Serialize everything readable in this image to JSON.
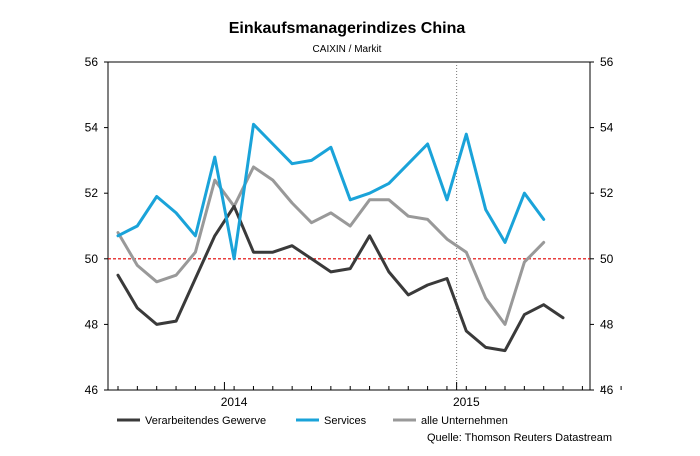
{
  "chart_data": {
    "type": "line",
    "title": "Einkaufsmanagerindizes China",
    "subtitle": "CAIXIN / Markit",
    "xlabel": "",
    "ylabel": "",
    "ylim": [
      46,
      56
    ],
    "yticks": [
      46,
      48,
      50,
      52,
      54,
      56
    ],
    "x": [
      "2013-07",
      "2013-08",
      "2013-09",
      "2013-10",
      "2013-11",
      "2013-12",
      "2014-01",
      "2014-02",
      "2014-03",
      "2014-04",
      "2014-05",
      "2014-06",
      "2014-07",
      "2014-08",
      "2014-09",
      "2014-10",
      "2014-11",
      "2014-12",
      "2015-01",
      "2015-02",
      "2015-03",
      "2015-04",
      "2015-05",
      "2015-06",
      "2015-07",
      "2015-08",
      "2015-09"
    ],
    "xtick_labels": [
      {
        "label": "2014",
        "at": "2014-01"
      },
      {
        "label": "2015",
        "at": "2015-01"
      }
    ],
    "reference_line": {
      "value": 50,
      "color": "#e00000",
      "style": "dashed"
    },
    "series": [
      {
        "name": "Verarbeitendes Gewerve",
        "color": "#3a3a3a",
        "values": [
          49.5,
          48.5,
          48.0,
          48.1,
          49.4,
          50.7,
          51.6,
          50.2,
          50.2,
          50.4,
          50.0,
          49.6,
          49.7,
          50.7,
          49.6,
          48.9,
          49.2,
          49.4,
          47.8,
          47.3,
          47.2,
          48.3,
          48.6,
          48.2,
          null,
          null,
          null
        ]
      },
      {
        "name": "Services",
        "color": "#1aa3d9",
        "values": [
          50.7,
          51.0,
          51.9,
          51.4,
          50.7,
          53.1,
          50.0,
          54.1,
          53.5,
          52.9,
          53.0,
          53.4,
          51.8,
          52.0,
          52.3,
          52.9,
          53.5,
          51.8,
          53.8,
          51.5,
          50.5,
          52.0,
          51.2,
          null,
          null,
          null,
          null
        ]
      },
      {
        "name": "alle Unternehmen",
        "color": "#999999",
        "values": [
          50.8,
          49.8,
          49.3,
          49.5,
          50.2,
          52.4,
          51.6,
          52.8,
          52.4,
          51.7,
          51.1,
          51.4,
          51.0,
          51.8,
          51.8,
          51.3,
          51.2,
          50.6,
          50.2,
          48.8,
          48.0,
          49.9,
          50.5,
          null,
          null,
          null,
          null
        ]
      }
    ],
    "source": "Quelle: Thomson Reuters Datastream",
    "grid": false,
    "legend_placement": "bottom"
  }
}
